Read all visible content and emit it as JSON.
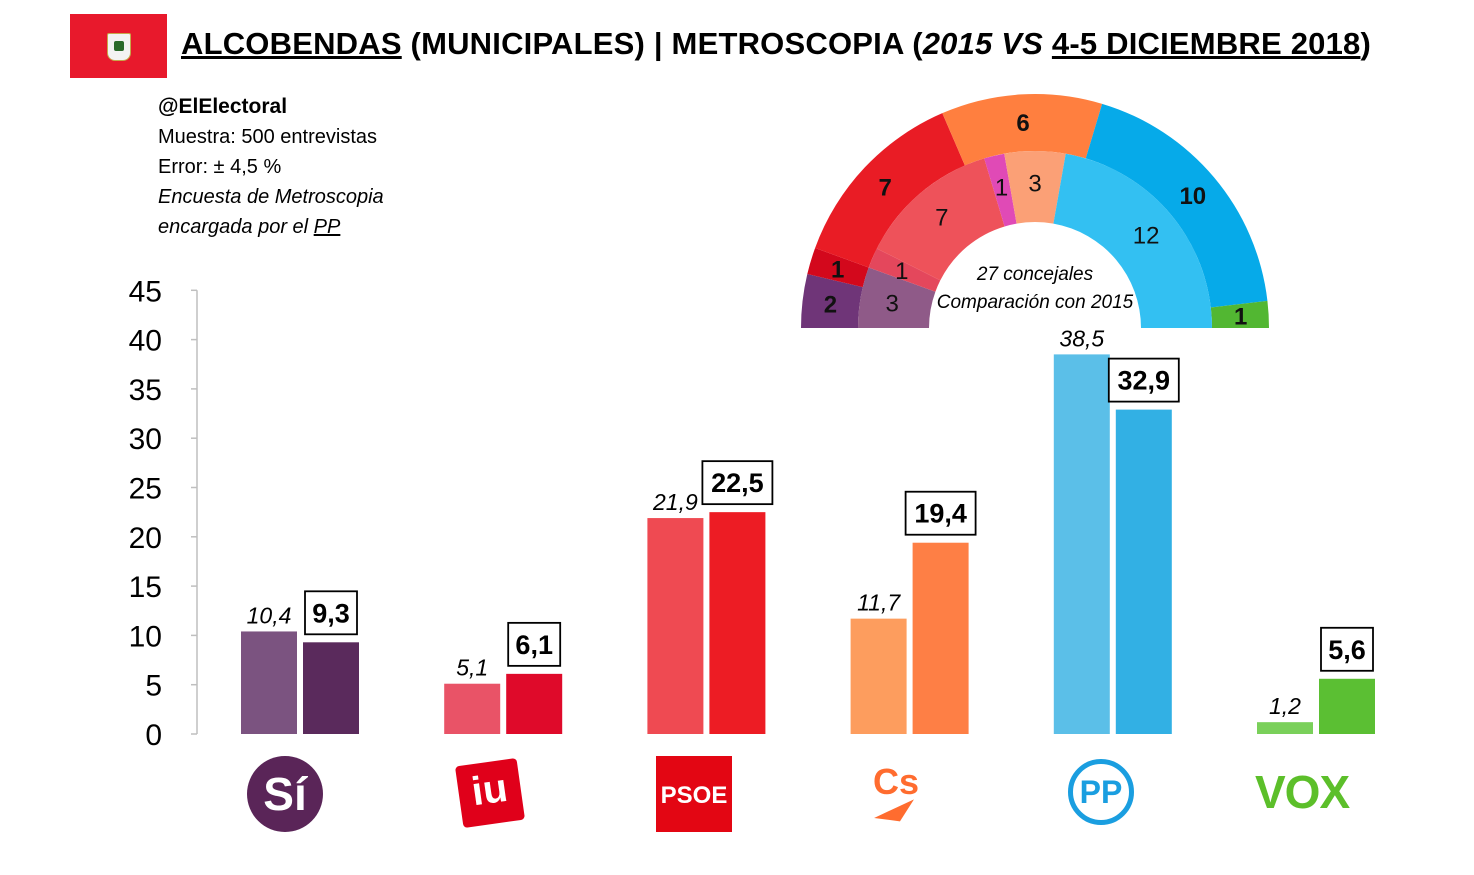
{
  "header": {
    "title_main": "ALCOBENDAS",
    "title_sub": " (MUNICIPALES) | METROSCOPIA (",
    "title_year": "2015 VS",
    "title_space": " ",
    "title_date": "4-5 DICIEMBRE 2018",
    "title_close": ")"
  },
  "info": {
    "handle": "@ElElectoral",
    "sample": "Muestra: 500 entrevistas",
    "error": "Error: ± 4,5 %",
    "note1": "Encuesta de Metroscopia",
    "note2_pre": "encargada por el ",
    "note2_link": "PP"
  },
  "logos": {
    "si": "Sí",
    "iu": "iu",
    "psoe": "PSOE",
    "cs": "Cs",
    "pp": "PP",
    "vox": "VOX"
  },
  "chart_data": [
    {
      "type": "bar",
      "categories": [
        "Sí",
        "IU",
        "PSOE",
        "Cs",
        "PP",
        "VOX"
      ],
      "series": [
        {
          "values": [
            10.4,
            5.1,
            21.9,
            11.7,
            38.5,
            1.2
          ],
          "colors": [
            "#7b5380",
            "#e95367",
            "#ef4a52",
            "#fd9d5e",
            "#5bbfe8",
            "#7ad05a"
          ]
        },
        {
          "values": [
            9.3,
            6.1,
            22.5,
            19.4,
            32.9,
            5.6
          ],
          "colors": [
            "#5a2a5c",
            "#df0a2a",
            "#ed1c24",
            "#fe7f45",
            "#32b0e4",
            "#5bbf33"
          ]
        }
      ],
      "labels_2015": [
        "10,4",
        "5,1",
        "21,9",
        "11,7",
        "38,5",
        "1,2"
      ],
      "labels_2018": [
        "9,3",
        "6,1",
        "22,5",
        "19,4",
        "32,9",
        "5,6"
      ],
      "yticks": [
        "0",
        "5",
        "10",
        "15",
        "20",
        "25",
        "30",
        "35",
        "40",
        "45"
      ],
      "ylim": [
        0,
        45
      ]
    },
    {
      "type": "pie",
      "variant": "parliament-semicircle",
      "caption_line1": "27 concejales",
      "caption_line2": "Comparación con 2015",
      "outer_ring": [
        {
          "party": "Sí",
          "seats": 2,
          "label": "2",
          "color": "#6f3578"
        },
        {
          "party": "IU",
          "seats": 1,
          "label": "1",
          "color": "#d3081c"
        },
        {
          "party": "PSOE",
          "seats": 7,
          "label": "7",
          "color": "#e91c25"
        },
        {
          "party": "Cs",
          "seats": 6,
          "label": "6",
          "color": "#ff7f3f"
        },
        {
          "party": "PP",
          "seats": 10,
          "label": "10",
          "color": "#06aae9"
        },
        {
          "party": "VOX",
          "seats": 1,
          "label": "1",
          "color": "#52b732"
        }
      ],
      "inner_ring": [
        {
          "party": "Sí",
          "seats": 3,
          "label": "3",
          "color": "#8f5a88"
        },
        {
          "party": "IU",
          "seats": 1,
          "label": "1",
          "color": "#e4475c"
        },
        {
          "party": "PSOE",
          "seats": 7,
          "label": "7",
          "color": "#ee525a"
        },
        {
          "party": "Other",
          "seats": 1,
          "label": "1",
          "color": "#e04ab6"
        },
        {
          "party": "Cs",
          "seats": 3,
          "label": "3",
          "color": "#fba076"
        },
        {
          "party": "PP",
          "seats": 12,
          "label": "12",
          "color": "#33c0f2"
        }
      ]
    }
  ]
}
